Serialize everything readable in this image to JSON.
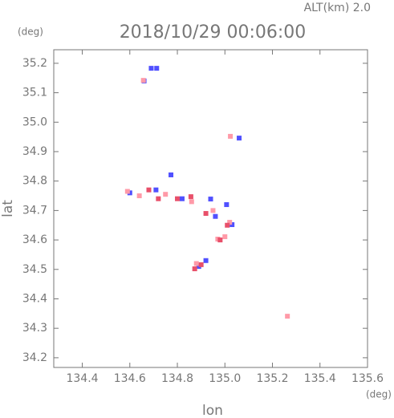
{
  "chart_data": {
    "type": "scatter",
    "subtitle": "ALT(km) 2.0",
    "title": "2018/10/29 00:06:00",
    "y_unit": "(deg)",
    "x_unit": "(deg)",
    "x_label": "lon",
    "y_label": "lat",
    "xlim": [
      134.28,
      135.6
    ],
    "ylim": [
      34.167,
      35.246
    ],
    "xticks": [
      134.4,
      134.6,
      134.8,
      {
        "value": 135,
        "label": "135.0"
      },
      135.2,
      135.4,
      135.6
    ],
    "yticks": [
      34.2,
      34.3,
      34.4,
      34.5,
      34.6,
      34.7,
      34.8,
      34.9,
      {
        "value": 35,
        "label": "35.0"
      },
      35.1,
      35.2
    ],
    "series": [
      {
        "color": "#5050ff",
        "x": [
          134.69,
          134.713,
          134.773,
          134.6,
          134.71,
          134.82,
          134.94,
          135.007,
          134.96,
          135.03,
          134.92,
          134.89,
          135.06,
          134.66
        ],
        "y": [
          35.183,
          35.183,
          34.821,
          34.76,
          34.77,
          34.74,
          34.739,
          34.72,
          34.68,
          34.652,
          34.53,
          34.51,
          34.946,
          35.14
        ]
      },
      {
        "color": "#ff9aa8",
        "x": [
          134.657,
          134.59,
          134.64,
          134.75,
          134.86,
          134.95,
          135.02,
          135.0,
          134.97,
          134.88,
          135.023,
          135.263
        ],
        "y": [
          35.142,
          34.765,
          34.75,
          34.755,
          34.73,
          34.7,
          34.66,
          34.611,
          34.603,
          34.52,
          34.952,
          34.341
        ]
      },
      {
        "color": "#e8506a",
        "x": [
          134.68,
          134.72,
          134.8,
          134.857,
          134.92,
          135.01,
          134.98,
          134.873,
          134.9
        ],
        "y": [
          34.77,
          34.74,
          34.74,
          34.747,
          34.69,
          34.65,
          34.6,
          34.502,
          34.516
        ]
      }
    ]
  }
}
